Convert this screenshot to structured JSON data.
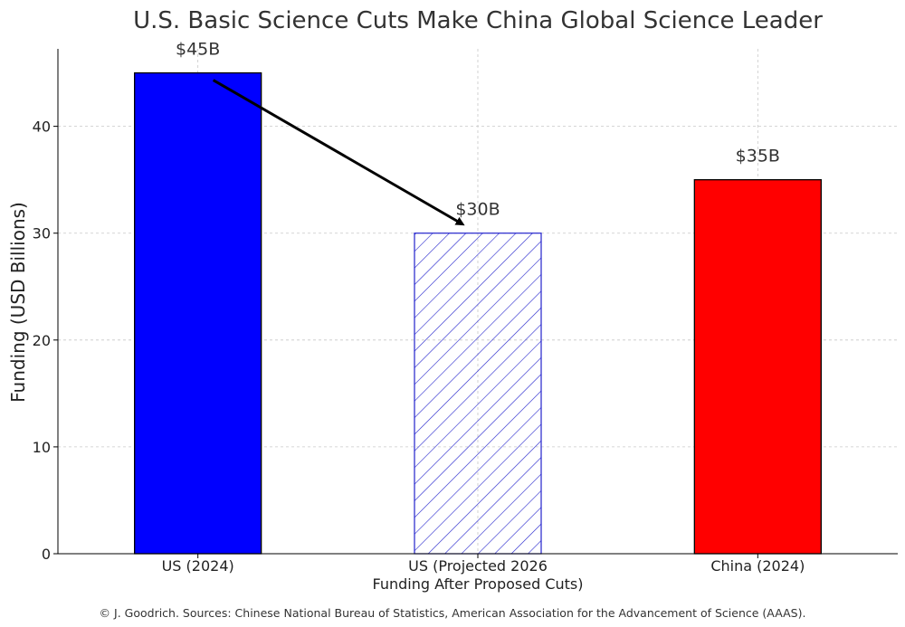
{
  "chart_data": {
    "type": "bar",
    "title": "U.S. Basic Science Cuts Make China Global Science Leader",
    "ylabel": "Funding (USD Billions)",
    "xlabel": "",
    "categories": [
      "US (2024)",
      "US (Projected 2026\nFunding After Proposed Cuts)",
      "China (2024)"
    ],
    "values": [
      45,
      30,
      35
    ],
    "data_labels": [
      "$45B",
      "$30B",
      "$35B"
    ],
    "colors": [
      "#0000ff",
      "#0000ff",
      "#ff0000"
    ],
    "bar_styles": [
      "solid",
      "hatched",
      "solid"
    ],
    "ylim": [
      0,
      47.25
    ],
    "yticks": [
      0,
      10,
      20,
      30,
      40
    ],
    "grid": true,
    "annotation": {
      "type": "arrow",
      "from_category": 0,
      "to_category": 1
    }
  },
  "footer": {
    "source": "© J. Goodrich. Sources: Chinese National Bureau of Statistics, American Association for the Advancement of Science (AAAS)."
  }
}
